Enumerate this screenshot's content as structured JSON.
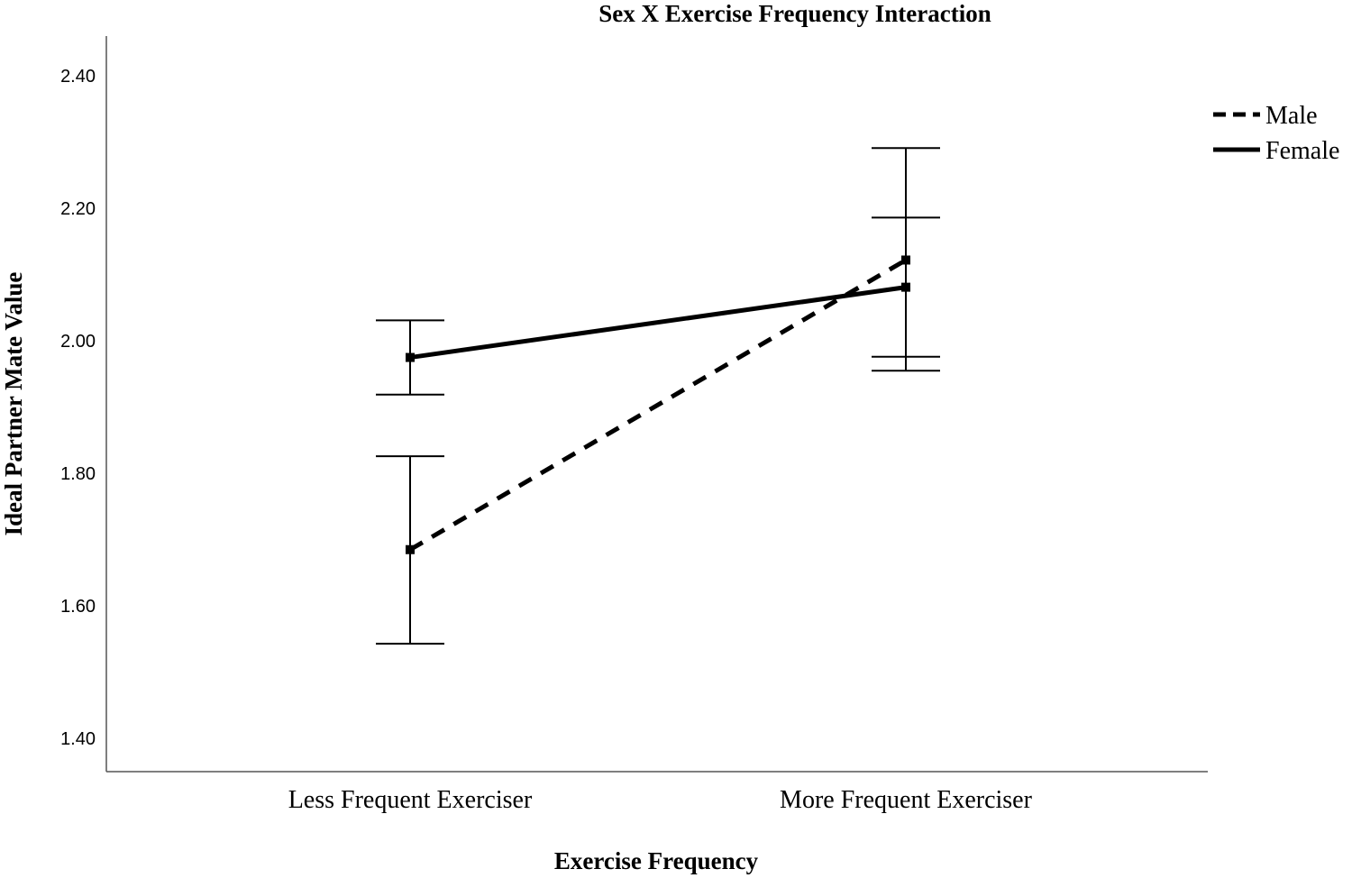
{
  "chart_data": {
    "type": "line",
    "title": "Sex X Exercise Frequency Interaction",
    "xlabel": "Exercise Frequency",
    "ylabel": "Ideal Partner Mate Value",
    "categories": [
      "Less Frequent Exerciser",
      "More Frequent Exerciser"
    ],
    "yticks": [
      "1.40",
      "1.60",
      "1.80",
      "2.00",
      "2.20",
      "2.40"
    ],
    "ylim": [
      1.35,
      2.46
    ],
    "grid": false,
    "legend_position": "top-right",
    "series": [
      {
        "name": "Male",
        "style": "dashed",
        "color": "#000000",
        "values": [
          1.685,
          2.122
        ],
        "error_low": [
          1.543,
          1.976
        ],
        "error_high": [
          1.826,
          2.291
        ]
      },
      {
        "name": "Female",
        "style": "solid",
        "color": "#000000",
        "values": [
          1.975,
          2.081
        ],
        "error_low": [
          1.919,
          1.955
        ],
        "error_high": [
          2.031,
          2.186
        ]
      }
    ]
  }
}
